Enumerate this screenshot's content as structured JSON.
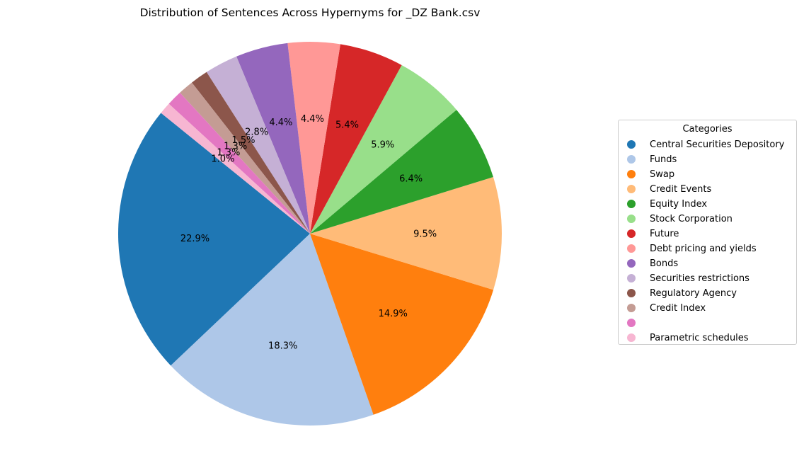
{
  "chart_data": {
    "type": "pie",
    "title": "Distribution of Sentences Across Hypernyms for _DZ Bank.csv",
    "legend_title": "Categories",
    "legend_position": "right",
    "start_angle_deg": 141,
    "direction": "counterclockwise",
    "slices": [
      {
        "label": "Central Securities Depository",
        "value": 22.9,
        "pct_label": "22.9%",
        "color": "#1f77b4"
      },
      {
        "label": "Funds",
        "value": 18.3,
        "pct_label": "18.3%",
        "color": "#aec7e8"
      },
      {
        "label": "Swap",
        "value": 14.9,
        "pct_label": "14.9%",
        "color": "#ff7f0e"
      },
      {
        "label": "Credit Events",
        "value": 9.5,
        "pct_label": "9.5%",
        "color": "#ffbb78"
      },
      {
        "label": "Equity Index",
        "value": 6.4,
        "pct_label": "6.4%",
        "color": "#2ca02c"
      },
      {
        "label": "Stock Corporation",
        "value": 5.9,
        "pct_label": "5.9%",
        "color": "#98df8a"
      },
      {
        "label": "Future",
        "value": 5.4,
        "pct_label": "5.4%",
        "color": "#d62728"
      },
      {
        "label": "Debt pricing and yields",
        "value": 4.4,
        "pct_label": "4.4%",
        "color": "#ff9896"
      },
      {
        "label": "Bonds",
        "value": 4.4,
        "pct_label": "4.4%",
        "color": "#9467bd"
      },
      {
        "label": "Securities restrictions",
        "value": 2.8,
        "pct_label": "2.8%",
        "color": "#c5b0d5"
      },
      {
        "label": "Regulatory Agency",
        "value": 1.5,
        "pct_label": "1.5%",
        "color": "#8c564b"
      },
      {
        "label": "Credit Index",
        "value": 1.3,
        "pct_label": "1.3%",
        "color": "#c49c94"
      },
      {
        "label": "",
        "value": 1.3,
        "pct_label": "1.3%",
        "color": "#e377c2"
      },
      {
        "label": "Parametric schedules",
        "value": 1.0,
        "pct_label": "1.0%",
        "color": "#f7b6d2"
      }
    ]
  }
}
